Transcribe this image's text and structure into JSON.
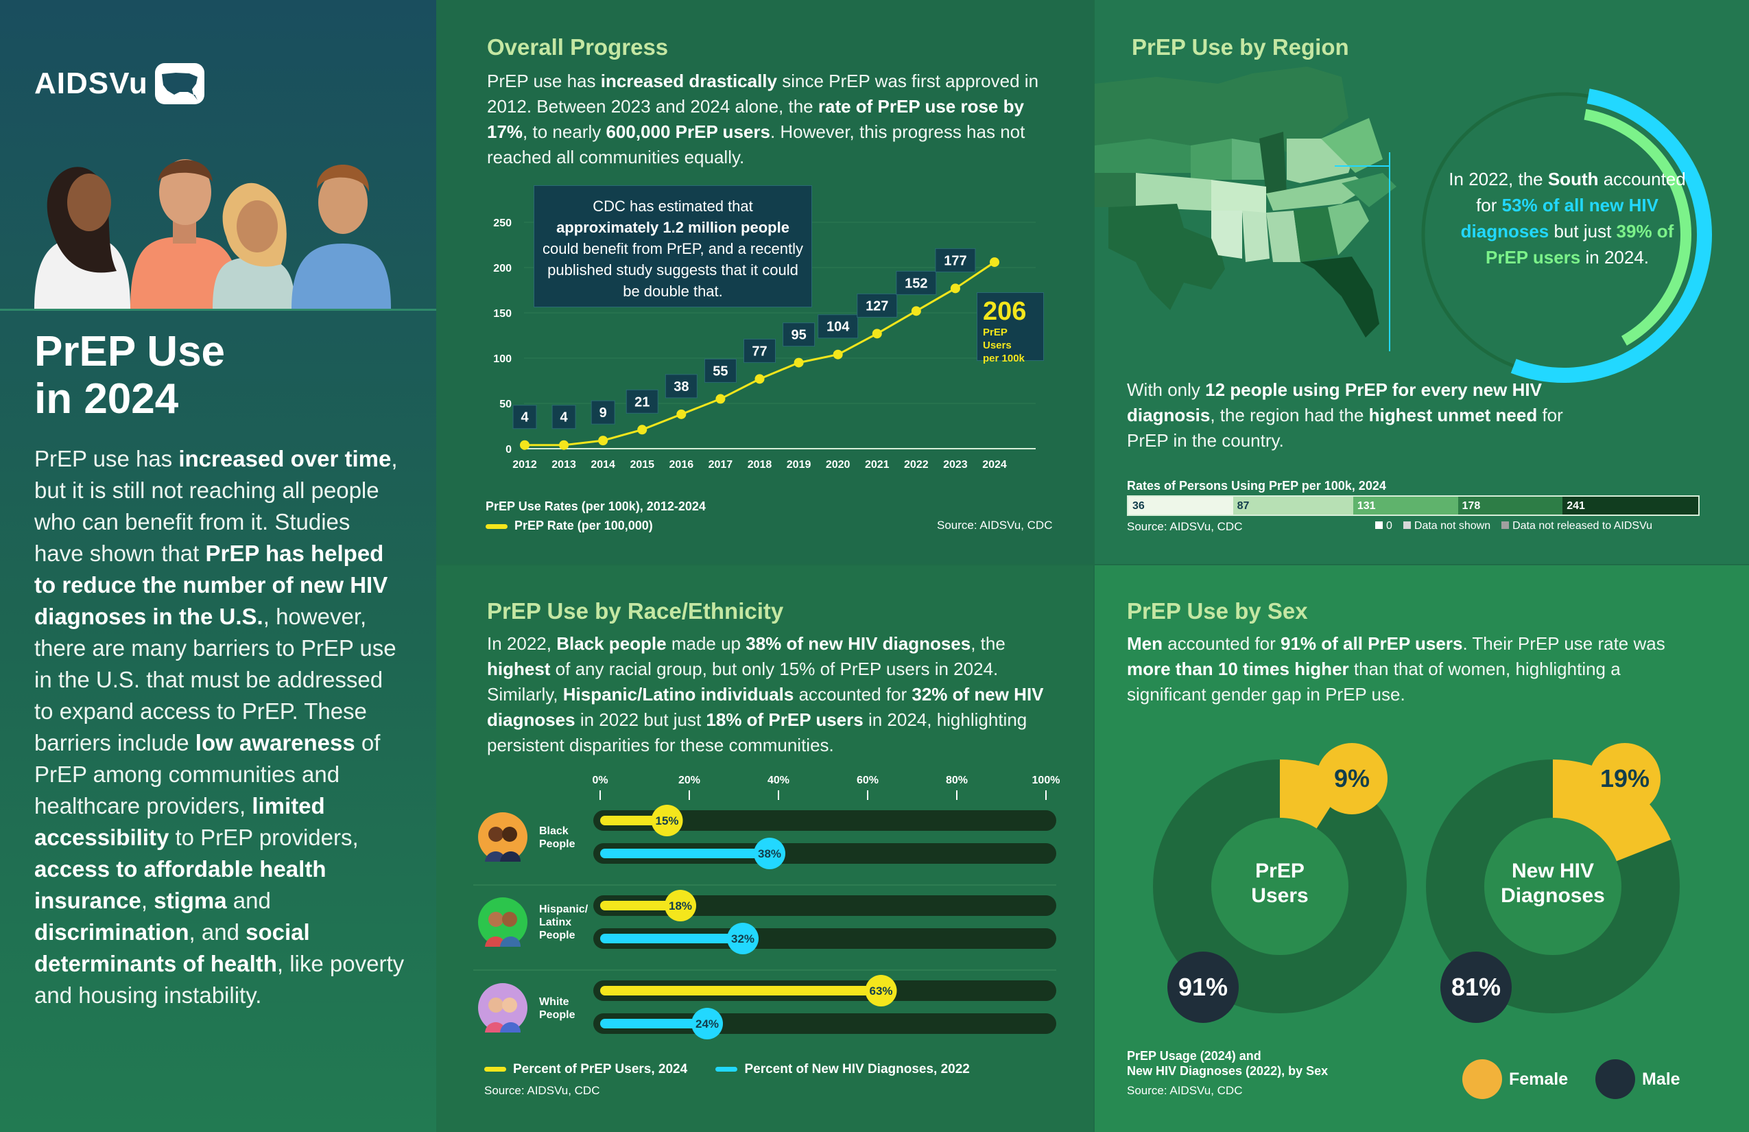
{
  "brand": {
    "name": "AIDSVu"
  },
  "left": {
    "title_line1": "PrEP Use",
    "title_line2": "in 2024",
    "body": [
      {
        "t": "PrEP use has ",
        "b": false
      },
      {
        "t": "increased over time",
        "b": true
      },
      {
        "t": ", but it is still not reaching all people who can benefit from it. Studies have shown that ",
        "b": false
      },
      {
        "t": "PrEP has helped to reduce the number of new HIV diagnoses in the U.S.",
        "b": true
      },
      {
        "t": ", however, there are many barriers to PrEP use in the U.S. that must be addressed to expand access to PrEP. These barriers include ",
        "b": false
      },
      {
        "t": "low awareness",
        "b": true
      },
      {
        "t": " of PrEP among communities and healthcare providers, ",
        "b": false
      },
      {
        "t": "limited accessibility",
        "b": true
      },
      {
        "t": " to PrEP providers, ",
        "b": false
      },
      {
        "t": "access to affordable health insurance",
        "b": true
      },
      {
        "t": ", ",
        "b": false
      },
      {
        "t": "stigma",
        "b": true
      },
      {
        "t": " and ",
        "b": false
      },
      {
        "t": "discrimination",
        "b": true
      },
      {
        "t": ", and ",
        "b": false
      },
      {
        "t": "social determinants of health",
        "b": true
      },
      {
        "t": ", like poverty and housing instability.",
        "b": false
      }
    ]
  },
  "overall": {
    "title": "Overall Progress",
    "body": [
      {
        "t": "PrEP use has ",
        "b": false
      },
      {
        "t": "increased drastically",
        "b": true
      },
      {
        "t": " since PrEP was first approved in 2012. Between 2023 and 2024 alone, the ",
        "b": false
      },
      {
        "t": "rate of PrEP use rose by 17%",
        "b": true
      },
      {
        "t": ", to nearly ",
        "b": false
      },
      {
        "t": "600,000 PrEP users",
        "b": true
      },
      {
        "t": ". However, this progress has not reached all communities equally.",
        "b": false
      }
    ],
    "callout": [
      {
        "t": "CDC has estimated that ",
        "b": false
      },
      {
        "t": "approximately 1.2 million people",
        "b": true
      },
      {
        "t": " could benefit from PrEP, and a recently published study suggests that it could be double that.",
        "b": false
      }
    ],
    "chart_caption": "PrEP Use Rates (per 100k), 2012-2024",
    "legend_label": "PrEP Rate  (per 100,000)",
    "source": "Source: AIDSVu, CDC",
    "final_value": "206",
    "final_caption_1": "PrEP Users",
    "final_caption_2": "per 100k"
  },
  "chart_data": [
    {
      "type": "line",
      "title": "PrEP Use Rates (per 100k), 2012-2024",
      "x": [
        2012,
        2013,
        2014,
        2015,
        2016,
        2017,
        2018,
        2019,
        2020,
        2021,
        2022,
        2023,
        2024
      ],
      "series": [
        {
          "name": "PrEP Rate  (per 100,000)",
          "values": [
            4,
            4,
            9,
            21,
            38,
            55,
            77,
            95,
            104,
            127,
            152,
            177,
            206
          ]
        }
      ],
      "yticks": [
        0,
        50,
        100,
        150,
        200,
        250
      ],
      "ylim": [
        0,
        250
      ],
      "color": "#f4e61c"
    },
    {
      "type": "bar",
      "title": "",
      "categories": [
        "Black People",
        "Hispanic/ Latinx People",
        "White People"
      ],
      "series": [
        {
          "name": "Percent of PrEP Users, 2024",
          "values": [
            15,
            18,
            63
          ],
          "color": "#f4e61c"
        },
        {
          "name": "Percent of New HIV Diagnoses, 2022",
          "values": [
            38,
            32,
            24
          ],
          "color": "#22d8ff"
        }
      ],
      "xticks": [
        "0%",
        "20%",
        "40%",
        "60%",
        "80%",
        "100%"
      ],
      "xlim": [
        0,
        100
      ]
    },
    {
      "type": "pie",
      "title": "PrEP Users",
      "slices": [
        {
          "name": "Female",
          "value": 9
        },
        {
          "name": "Male",
          "value": 91
        }
      ]
    },
    {
      "type": "pie",
      "title": "New HIV Diagnoses",
      "slices": [
        {
          "name": "Female",
          "value": 19
        },
        {
          "name": "Male",
          "value": 81
        }
      ]
    },
    {
      "type": "bar",
      "title": "Rates of Persons Using PrEP per 100k, 2024",
      "categories": [
        "36",
        "87",
        "131",
        "178",
        "241"
      ],
      "legend": [
        "0",
        "Data not shown",
        "Data not released to AIDSVu"
      ]
    }
  ],
  "region": {
    "title": "PrEP Use by Region",
    "circle_text": [
      {
        "t": "In 2022, the ",
        "c": ""
      },
      {
        "t": "South",
        "c": "b"
      },
      {
        "t": " accounted for ",
        "c": ""
      },
      {
        "t": "53% of all new HIV diagnoses",
        "c": "cyan"
      },
      {
        "t": " but just ",
        "c": ""
      },
      {
        "t": "39% of PrEP users",
        "c": "green"
      },
      {
        "t": " in 2024.",
        "c": ""
      }
    ],
    "body": [
      {
        "t": "With only ",
        "b": false
      },
      {
        "t": "12 people using PrEP for every new HIV diagnosis",
        "b": true
      },
      {
        "t": ", the region had the ",
        "b": false
      },
      {
        "t": "highest unmet need",
        "b": true
      },
      {
        "t": " for PrEP in the country.",
        "b": false
      }
    ],
    "scale_title": "Rates of Persons Using PrEP per 100k, 2024",
    "scale": [
      "36",
      "87",
      "131",
      "178",
      "241"
    ],
    "source": "Source: AIDSVu, CDC",
    "legend": [
      "0",
      "Data not shown",
      "Data not released to AIDSVu"
    ]
  },
  "race": {
    "title": "PrEP Use by Race/Ethnicity",
    "body": [
      {
        "t": "In 2022, ",
        "b": false
      },
      {
        "t": "Black people",
        "b": true
      },
      {
        "t": " made up ",
        "b": false
      },
      {
        "t": "38% of new HIV diagnoses",
        "b": true
      },
      {
        "t": ", the ",
        "b": false
      },
      {
        "t": "highest",
        "b": true
      },
      {
        "t": " of any racial group, but only 15% of PrEP users in 2024. Similarly, ",
        "b": false
      },
      {
        "t": "Hispanic/Latino individuals",
        "b": true
      },
      {
        "t": " accounted for ",
        "b": false
      },
      {
        "t": "32% of new HIV diagnoses",
        "b": true
      },
      {
        "t": " in 2022 but just ",
        "b": false
      },
      {
        "t": "18% of PrEP users",
        "b": true
      },
      {
        "t": " in 2024, highlighting persistent disparities for these communities.",
        "b": false
      }
    ],
    "legend_prep": "Percent of PrEP Users, 2024",
    "legend_hiv": "Percent of New HIV Diagnoses, 2022",
    "source": "Source: AIDSVu, CDC"
  },
  "sex": {
    "title": "PrEP Use by Sex",
    "body": [
      {
        "t": "Men",
        "b": true
      },
      {
        "t": " accounted for ",
        "b": false
      },
      {
        "t": "91% of all PrEP users",
        "b": true
      },
      {
        "t": ". Their PrEP use rate was ",
        "b": false
      },
      {
        "t": "more than 10 times higher",
        "b": true
      },
      {
        "t": " than that of women, highlighting a significant gender gap in PrEP use.",
        "b": false
      }
    ],
    "donut1_line1": "PrEP",
    "donut1_line2": "Users",
    "donut2_line1": "New HIV",
    "donut2_line2": "Diagnoses",
    "caption_1": "PrEP Usage (2024) and",
    "caption_2": "New HIV Diagnoses (2022), by Sex",
    "source": "Source: AIDSVu, CDC",
    "legend_female": "Female",
    "legend_male": "Male"
  },
  "colors": {
    "yellow": "#f4e61c",
    "cyan": "#22d8ff",
    "dark": "#123e4c",
    "track": "#16341e"
  }
}
